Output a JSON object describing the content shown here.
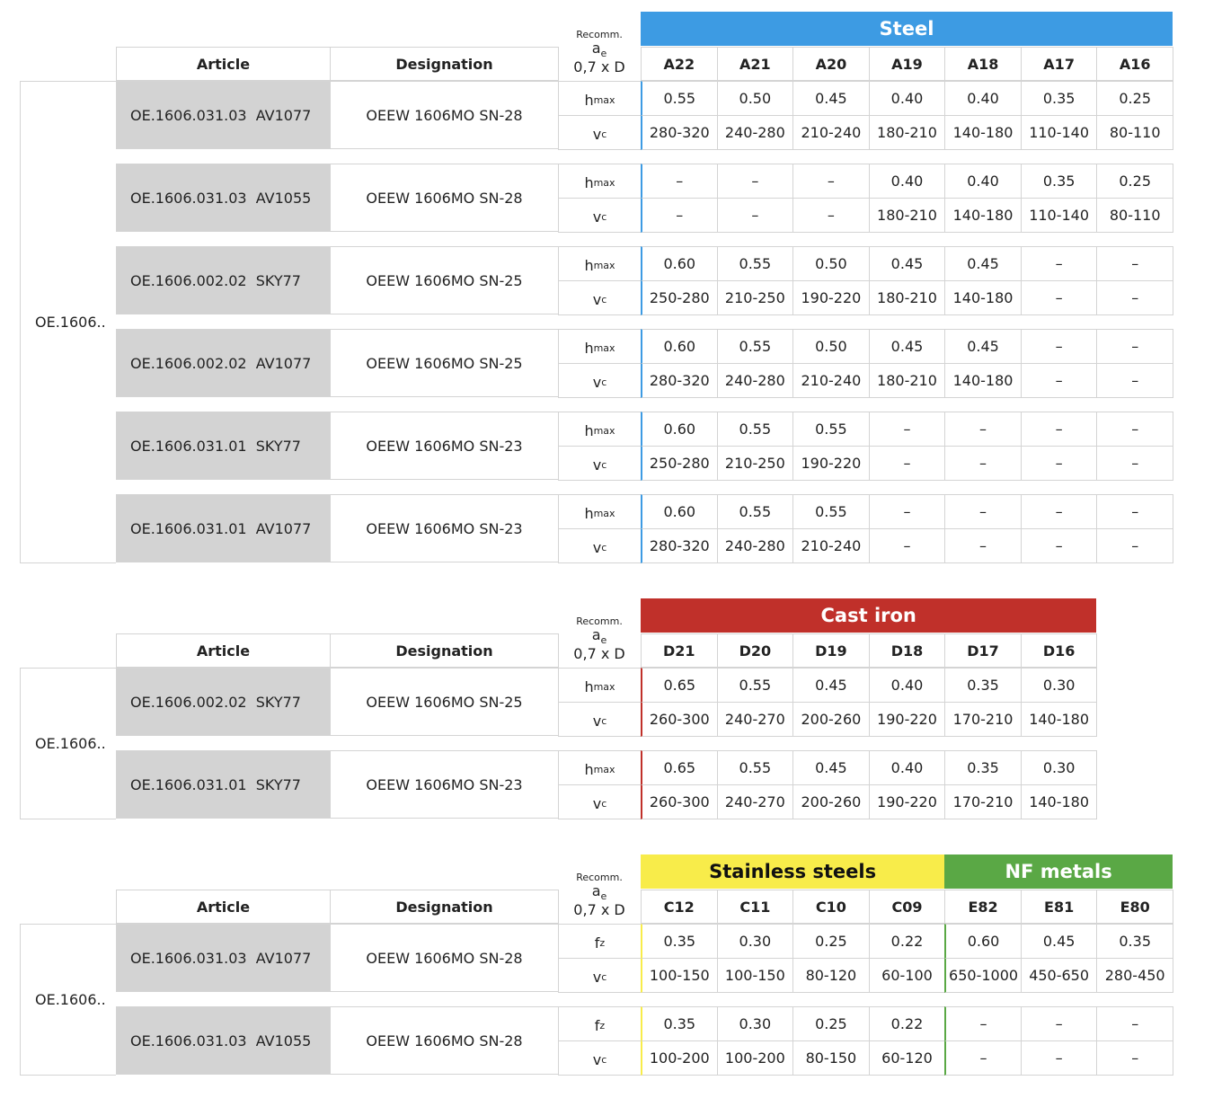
{
  "tables": [
    {
      "group_label": "OE.1606..",
      "article_header": "Article",
      "designation_header": "Designation",
      "recomm": "Recomm.",
      "ae_symbol": "a",
      "ae_sub": "e",
      "ae_formula": "0,7 x D",
      "bands": [
        {
          "name": "Steel",
          "color": "#3d9be3",
          "text_color": "#ffffff",
          "columns": [
            "A22",
            "A21",
            "A20",
            "A19",
            "A18",
            "A17",
            "A16"
          ]
        }
      ],
      "rows": [
        {
          "article": "OE.1606.031.03  AV1077",
          "designation": "OEEW 1606MO SN-28",
          "params": [
            {
              "symbol": "h",
              "sub": "max",
              "values": [
                "0.55",
                "0.50",
                "0.45",
                "0.40",
                "0.40",
                "0.35",
                "0.25"
              ]
            },
            {
              "symbol": "v",
              "sub": "c",
              "values": [
                "280-320",
                "240-280",
                "210-240",
                "180-210",
                "140-180",
                "110-140",
                "80-110"
              ]
            }
          ]
        },
        {
          "article": "OE.1606.031.03  AV1055",
          "designation": "OEEW 1606MO SN-28",
          "params": [
            {
              "symbol": "h",
              "sub": "max",
              "values": [
                "–",
                "–",
                "–",
                "0.40",
                "0.40",
                "0.35",
                "0.25"
              ]
            },
            {
              "symbol": "v",
              "sub": "c",
              "values": [
                "–",
                "–",
                "–",
                "180-210",
                "140-180",
                "110-140",
                "80-110"
              ]
            }
          ]
        },
        {
          "article": "OE.1606.002.02  SKY77",
          "designation": "OEEW 1606MO SN-25",
          "params": [
            {
              "symbol": "h",
              "sub": "max",
              "values": [
                "0.60",
                "0.55",
                "0.50",
                "0.45",
                "0.45",
                "–",
                "–"
              ]
            },
            {
              "symbol": "v",
              "sub": "c",
              "values": [
                "250-280",
                "210-250",
                "190-220",
                "180-210",
                "140-180",
                "–",
                "–"
              ]
            }
          ]
        },
        {
          "article": "OE.1606.002.02  AV1077",
          "designation": "OEEW 1606MO SN-25",
          "params": [
            {
              "symbol": "h",
              "sub": "max",
              "values": [
                "0.60",
                "0.55",
                "0.50",
                "0.45",
                "0.45",
                "–",
                "–"
              ]
            },
            {
              "symbol": "v",
              "sub": "c",
              "values": [
                "280-320",
                "240-280",
                "210-240",
                "180-210",
                "140-180",
                "–",
                "–"
              ]
            }
          ]
        },
        {
          "article": "OE.1606.031.01  SKY77",
          "designation": "OEEW 1606MO SN-23",
          "params": [
            {
              "symbol": "h",
              "sub": "max",
              "values": [
                "0.60",
                "0.55",
                "0.55",
                "–",
                "–",
                "–",
                "–"
              ]
            },
            {
              "symbol": "v",
              "sub": "c",
              "values": [
                "250-280",
                "210-250",
                "190-220",
                "–",
                "–",
                "–",
                "–"
              ]
            }
          ]
        },
        {
          "article": "OE.1606.031.01  AV1077",
          "designation": "OEEW 1606MO SN-23",
          "params": [
            {
              "symbol": "h",
              "sub": "max",
              "values": [
                "0.60",
                "0.55",
                "0.55",
                "–",
                "–",
                "–",
                "–"
              ]
            },
            {
              "symbol": "v",
              "sub": "c",
              "values": [
                "280-320",
                "240-280",
                "210-240",
                "–",
                "–",
                "–",
                "–"
              ]
            }
          ]
        }
      ]
    },
    {
      "group_label": "OE.1606..",
      "article_header": "Article",
      "designation_header": "Designation",
      "recomm": "Recomm.",
      "ae_symbol": "a",
      "ae_sub": "e",
      "ae_formula": "0,7 x D",
      "bands": [
        {
          "name": "Cast iron",
          "color": "#c0302a",
          "text_color": "#ffffff",
          "columns": [
            "D21",
            "D20",
            "D19",
            "D18",
            "D17",
            "D16"
          ]
        }
      ],
      "rows": [
        {
          "article": "OE.1606.002.02  SKY77",
          "designation": "OEEW 1606MO SN-25",
          "params": [
            {
              "symbol": "h",
              "sub": "max",
              "values": [
                "0.65",
                "0.55",
                "0.45",
                "0.40",
                "0.35",
                "0.30"
              ]
            },
            {
              "symbol": "v",
              "sub": "c",
              "values": [
                "260-300",
                "240-270",
                "200-260",
                "190-220",
                "170-210",
                "140-180"
              ]
            }
          ]
        },
        {
          "article": "OE.1606.031.01  SKY77",
          "designation": "OEEW 1606MO SN-23",
          "params": [
            {
              "symbol": "h",
              "sub": "max",
              "values": [
                "0.65",
                "0.55",
                "0.45",
                "0.40",
                "0.35",
                "0.30"
              ]
            },
            {
              "symbol": "v",
              "sub": "c",
              "values": [
                "260-300",
                "240-270",
                "200-260",
                "190-220",
                "170-210",
                "140-180"
              ]
            }
          ]
        }
      ]
    },
    {
      "group_label": "OE.1606..",
      "article_header": "Article",
      "designation_header": "Designation",
      "recomm": "Recomm.",
      "ae_symbol": "a",
      "ae_sub": "e",
      "ae_formula": "0,7 x D",
      "bands": [
        {
          "name": "Stainless steels",
          "color": "#f8ec4a",
          "text_color": "#111111",
          "columns": [
            "C12",
            "C11",
            "C10",
            "C09"
          ]
        },
        {
          "name": "NF metals",
          "color": "#5aa845",
          "text_color": "#ffffff",
          "columns": [
            "E82",
            "E81",
            "E80"
          ]
        }
      ],
      "rows": [
        {
          "article": "OE.1606.031.03  AV1077",
          "designation": "OEEW 1606MO SN-28",
          "params": [
            {
              "symbol": "f",
              "sub": "z",
              "values": [
                "0.35",
                "0.30",
                "0.25",
                "0.22",
                "0.60",
                "0.45",
                "0.35"
              ]
            },
            {
              "symbol": "v",
              "sub": "c",
              "values": [
                "100-150",
                "100-150",
                "80-120",
                "60-100",
                "650-1000",
                "450-650",
                "280-450"
              ]
            }
          ]
        },
        {
          "article": "OE.1606.031.03  AV1055",
          "designation": "OEEW 1606MO SN-28",
          "params": [
            {
              "symbol": "f",
              "sub": "z",
              "values": [
                "0.35",
                "0.30",
                "0.25",
                "0.22",
                "–",
                "–",
                "–"
              ]
            },
            {
              "symbol": "v",
              "sub": "c",
              "values": [
                "100-200",
                "100-200",
                "80-150",
                "60-120",
                "–",
                "–",
                "–"
              ]
            }
          ]
        }
      ]
    }
  ]
}
